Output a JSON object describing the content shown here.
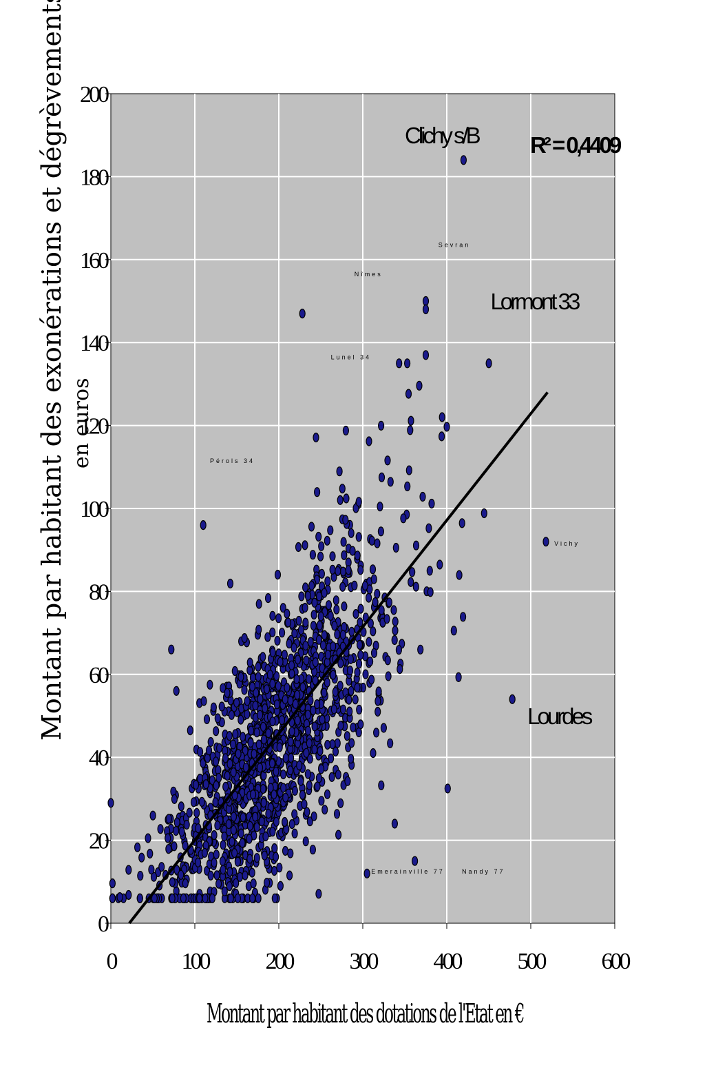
{
  "chart_data": {
    "type": "scatter",
    "xlabel": "Montant par habitant des dotations de l'Etat en €",
    "ylabel": "Montant par habitant des exonérations et dégrèvements",
    "ylabel_sub": "en euros",
    "xlim": [
      0,
      600
    ],
    "ylim": [
      0,
      200
    ],
    "x_ticks": [
      "0",
      "100",
      "200",
      "300",
      "400",
      "500",
      "600"
    ],
    "y_ticks": [
      "0",
      "20",
      "40",
      "60",
      "80",
      "100",
      "120",
      "140",
      "160",
      "180",
      "200"
    ],
    "grid": true,
    "r_squared_label": "R² = 0,4409",
    "trendline": {
      "x1": 22,
      "y1": 0,
      "x2": 520,
      "y2": 128
    },
    "annotations": [
      {
        "label": "Clichy s/B",
        "x": 350,
        "y": 188,
        "size": "large"
      },
      {
        "label": "Lormont 33",
        "x": 452,
        "y": 148,
        "size": "large"
      },
      {
        "label": "Lourdes",
        "x": 496,
        "y": 48,
        "size": "large"
      },
      {
        "label": "Sevran",
        "x": 390,
        "y": 163,
        "size": "small"
      },
      {
        "label": "Nîmes",
        "x": 290,
        "y": 156,
        "size": "small"
      },
      {
        "label": "Lunel 34",
        "x": 262,
        "y": 136,
        "size": "small"
      },
      {
        "label": "Pérols 34",
        "x": 118,
        "y": 111,
        "size": "small"
      },
      {
        "label": "Emerainville 77",
        "x": 310,
        "y": 12,
        "size": "small"
      },
      {
        "label": "Nandy 77",
        "x": 418,
        "y": 12,
        "size": "small"
      },
      {
        "label": "Vichy",
        "x": 528,
        "y": 91,
        "size": "small"
      }
    ],
    "highlighted_points": [
      {
        "x": 420,
        "y": 184
      },
      {
        "x": 228,
        "y": 147
      },
      {
        "x": 375,
        "y": 150
      },
      {
        "x": 375,
        "y": 148
      },
      {
        "x": 375,
        "y": 137
      },
      {
        "x": 110,
        "y": 96
      },
      {
        "x": 518,
        "y": 92
      },
      {
        "x": 478,
        "y": 54
      },
      {
        "x": 0,
        "y": 29
      },
      {
        "x": 52,
        "y": 6
      },
      {
        "x": 305,
        "y": 12
      },
      {
        "x": 362,
        "y": 15
      },
      {
        "x": 338,
        "y": 24
      },
      {
        "x": 72,
        "y": 66
      },
      {
        "x": 78,
        "y": 56
      }
    ],
    "cloud_note": "≈1500 communes; values approximated as a cloud around the regression line",
    "colors": {
      "plot_bg": "#c0c0c0",
      "point_fill": "#1a1a8c",
      "point_stroke": "#000000",
      "trend": "#000000",
      "grid": "#ffffff"
    }
  }
}
